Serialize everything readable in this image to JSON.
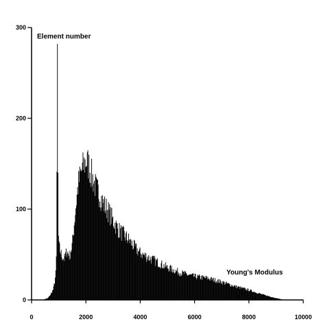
{
  "chart_data": {
    "type": "bar",
    "xlabel": "Young's Modulus",
    "ylabel": "Element number",
    "xlim": [
      0,
      10000
    ],
    "ylim": [
      0,
      300
    ],
    "x_ticks": [
      "0",
      "2000",
      "4000",
      "6000",
      "8000",
      "10000"
    ],
    "y_ticks": [
      "0",
      "100",
      "200",
      "300"
    ],
    "grid": false,
    "bar_color": "#000000",
    "bin_width": 20,
    "series": [
      {
        "x": [
          400,
          600,
          700,
          800,
          850,
          900,
          920,
          940,
          950,
          960,
          980,
          1000,
          1100,
          1200,
          1300,
          1400,
          1500,
          1600,
          1700,
          1800,
          1900,
          2000,
          2100,
          2200,
          2300,
          2400,
          2500,
          2600,
          2700,
          2800,
          3000,
          3200,
          3400,
          3600,
          3800,
          4000,
          4500,
          5000,
          5500,
          6000,
          6500,
          7000,
          7500,
          8000,
          8500,
          9000,
          9300
        ],
        "values": [
          0,
          2,
          6,
          12,
          20,
          32,
          60,
          215,
          282,
          200,
          80,
          60,
          50,
          45,
          55,
          48,
          62,
          95,
          125,
          140,
          148,
          155,
          150,
          140,
          130,
          122,
          118,
          110,
          104,
          100,
          88,
          78,
          72,
          66,
          58,
          52,
          44,
          36,
          30,
          26,
          24,
          20,
          15,
          11,
          6,
          2,
          0
        ]
      }
    ]
  }
}
